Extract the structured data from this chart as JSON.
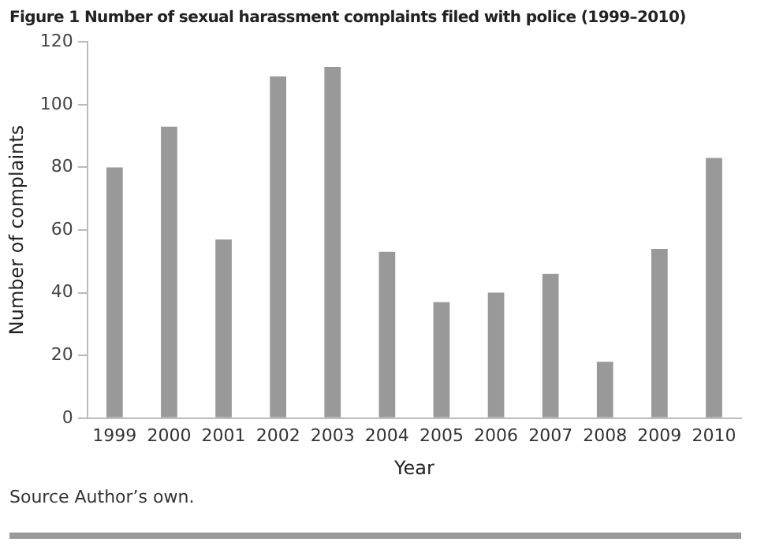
{
  "chart_data": {
    "type": "bar",
    "title": "Figure 1 Number of sexual harassment complaints filed with police (1999–2010)",
    "xlabel": "Year",
    "ylabel": "Number of complaints",
    "categories": [
      "1999",
      "2000",
      "2001",
      "2002",
      "2003",
      "2004",
      "2005",
      "2006",
      "2007",
      "2008",
      "2009",
      "2010"
    ],
    "values": [
      80,
      93,
      57,
      109,
      112,
      53,
      37,
      40,
      46,
      18,
      54,
      83
    ],
    "color": "#999999",
    "ylim": [
      0,
      120
    ],
    "yticks": [
      0,
      20,
      40,
      60,
      80,
      100,
      120
    ],
    "grid": false,
    "legend": false,
    "annotations": [
      "Source Author’s own."
    ]
  }
}
